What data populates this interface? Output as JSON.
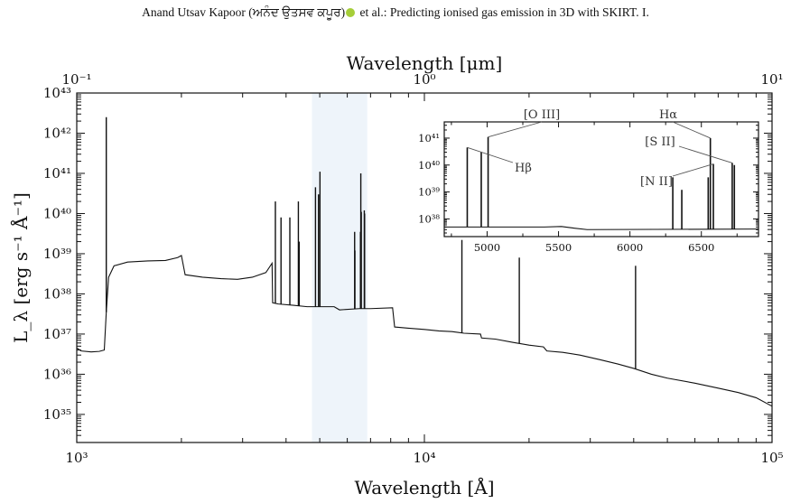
{
  "header": {
    "authors_pre": "Anand Utsav Kapoor (",
    "authors_punjabi": "ਅਨੰਦ ਉਤਸਵ ਕਪੂਰ",
    "authors_post": ")",
    "title_tail": " et al.: Predicting ionised gas emission in 3D with SKIRT. I."
  },
  "chart_data": [
    {
      "type": "line",
      "xlabel": "Wavelength [Å]",
      "ylabel": "L_λ [erg s⁻¹ Å⁻¹]",
      "x_top_label": "Wavelength [μm]",
      "xscale": "log",
      "yscale": "log",
      "xlim": [
        1000,
        100000
      ],
      "ylim": [
        2e+34,
        1e+43
      ],
      "x_ticks": [
        1000,
        10000,
        100000
      ],
      "x_tick_labels": [
        "10³",
        "10⁴",
        "10⁵"
      ],
      "x_top_ticks": [
        0.1,
        1,
        10
      ],
      "x_top_tick_labels": [
        "10⁻¹",
        "10⁰",
        "10¹"
      ],
      "y_ticks": [
        1e+35,
        1e+36,
        1e+37,
        1e+38,
        1e+39,
        1e+40,
        1e+41,
        1e+42,
        1e+43
      ],
      "y_tick_labels": [
        "10³⁵",
        "10³⁶",
        "10³⁷",
        "10³⁸",
        "10³⁹",
        "10⁴⁰",
        "10⁴¹",
        "10⁴²",
        "10⁴³"
      ],
      "highlight_band": [
        4750,
        6850
      ],
      "highlight_color": "#eef4fa",
      "continuum": [
        [
          1000,
          4.5e+36
        ],
        [
          1030,
          3.8e+36
        ],
        [
          1100,
          3.6e+36
        ],
        [
          1160,
          3.7e+36
        ],
        [
          1200,
          4e+36
        ],
        [
          1216,
          3.5e+37
        ],
        [
          1235,
          2.6e+38
        ],
        [
          1280,
          5e+38
        ],
        [
          1400,
          6.2e+38
        ],
        [
          1600,
          6.6e+38
        ],
        [
          1800,
          6.8e+38
        ],
        [
          1950,
          8e+38
        ],
        [
          2000,
          9e+38
        ],
        [
          2050,
          3e+38
        ],
        [
          2300,
          2.6e+38
        ],
        [
          2600,
          2.4e+38
        ],
        [
          2900,
          2.3e+38
        ],
        [
          3200,
          2.6e+38
        ],
        [
          3500,
          3.4e+38
        ],
        [
          3646,
          5.8e+38
        ],
        [
          3660,
          6e+37
        ],
        [
          3800,
          5.6e+37
        ],
        [
          4200,
          5.2e+37
        ],
        [
          4600,
          4.8e+37
        ],
        [
          5000,
          4.8e+37
        ],
        [
          5500,
          4.8e+37
        ],
        [
          5700,
          4e+37
        ],
        [
          6500,
          4.3e+37
        ],
        [
          7000,
          4.3e+37
        ],
        [
          8100,
          4.5e+37
        ],
        [
          8210,
          1.5e+37
        ],
        [
          9000,
          1.4e+37
        ],
        [
          10000,
          1.3e+37
        ],
        [
          11000,
          1.2e+37
        ],
        [
          12000,
          1.15e+37
        ],
        [
          13000,
          1.05e+37
        ],
        [
          14500,
          1e+37
        ],
        [
          14600,
          8e+36
        ],
        [
          16000,
          7.5e+36
        ],
        [
          18000,
          6.2e+36
        ],
        [
          20000,
          5.3e+36
        ],
        [
          22000,
          4.8e+36
        ],
        [
          22500,
          3.8e+36
        ],
        [
          25000,
          3.5e+36
        ],
        [
          28000,
          3e+36
        ],
        [
          32000,
          2.3e+36
        ],
        [
          36000,
          1.8e+36
        ],
        [
          40000,
          1.4e+36
        ],
        [
          45000,
          1e+36
        ],
        [
          50000,
          8e+35
        ],
        [
          60000,
          6e+35
        ],
        [
          70000,
          4.5e+35
        ],
        [
          80000,
          3.5e+35
        ],
        [
          90000,
          2.6e+35
        ],
        [
          100000,
          1.6e+35
        ]
      ],
      "lines": [
        [
          1216,
          2.5e+42
        ],
        [
          3727,
          2e+40
        ],
        [
          3869,
          8e+39
        ],
        [
          4102,
          8e+39
        ],
        [
          4340,
          2e+40
        ],
        [
          4363,
          2e+39
        ],
        [
          4861,
          4.5e+40
        ],
        [
          4959,
          3e+40
        ],
        [
          5007,
          1.1e+41
        ],
        [
          6300,
          3.5e+39
        ],
        [
          6312,
          1.2e+39
        ],
        [
          6548,
          3.5e+39
        ],
        [
          6563,
          1e+41
        ],
        [
          6584,
          1.1e+40
        ],
        [
          6716,
          1.2e+40
        ],
        [
          6731,
          1e+40
        ],
        [
          12820,
          2.2e+39
        ],
        [
          18750,
          8e+38
        ],
        [
          40500,
          5e+38
        ]
      ]
    },
    {
      "type": "line",
      "xlim": [
        4700,
        6900
      ],
      "ylim": [
        2.2e+37,
        4e+41
      ],
      "x_ticks": [
        5000,
        5500,
        6000,
        6500
      ],
      "x_tick_labels": [
        "5000",
        "5500",
        "6000",
        "6500"
      ],
      "y_ticks": [
        1e+38,
        1e+39,
        1e+40,
        1e+41
      ],
      "y_tick_labels": [
        "10³⁸",
        "10³⁹",
        "10⁴⁰",
        "10⁴¹"
      ],
      "continuum": [
        [
          4700,
          5e+37
        ],
        [
          5400,
          5e+37
        ],
        [
          5520,
          5.2e+37
        ],
        [
          5600,
          4.6e+37
        ],
        [
          5700,
          4e+37
        ],
        [
          6900,
          4.2e+37
        ]
      ],
      "lines": [
        [
          4861,
          4.5e+40
        ],
        [
          4959,
          3e+40
        ],
        [
          5007,
          1.1e+41
        ],
        [
          6300,
          3.5e+39
        ],
        [
          6363,
          1.2e+39
        ],
        [
          6548,
          3.5e+39
        ],
        [
          6563,
          1e+41
        ],
        [
          6584,
          1.1e+40
        ],
        [
          6716,
          1.2e+40
        ],
        [
          6731,
          1e+40
        ]
      ],
      "annotations": [
        {
          "text": "[O III]",
          "line_x": 5007,
          "line_y": 1.1e+41
        },
        {
          "text": "Hβ",
          "line_x": 4861,
          "line_y": 4.5e+40
        },
        {
          "text": "Hα",
          "line_x": 6563,
          "line_y": 1e+41
        },
        {
          "text": "[S II]",
          "line_x": 6716,
          "line_y": 1.2e+40
        },
        {
          "text": "[N II]",
          "line_x": 6584,
          "line_y": 1.1e+40
        }
      ]
    }
  ]
}
